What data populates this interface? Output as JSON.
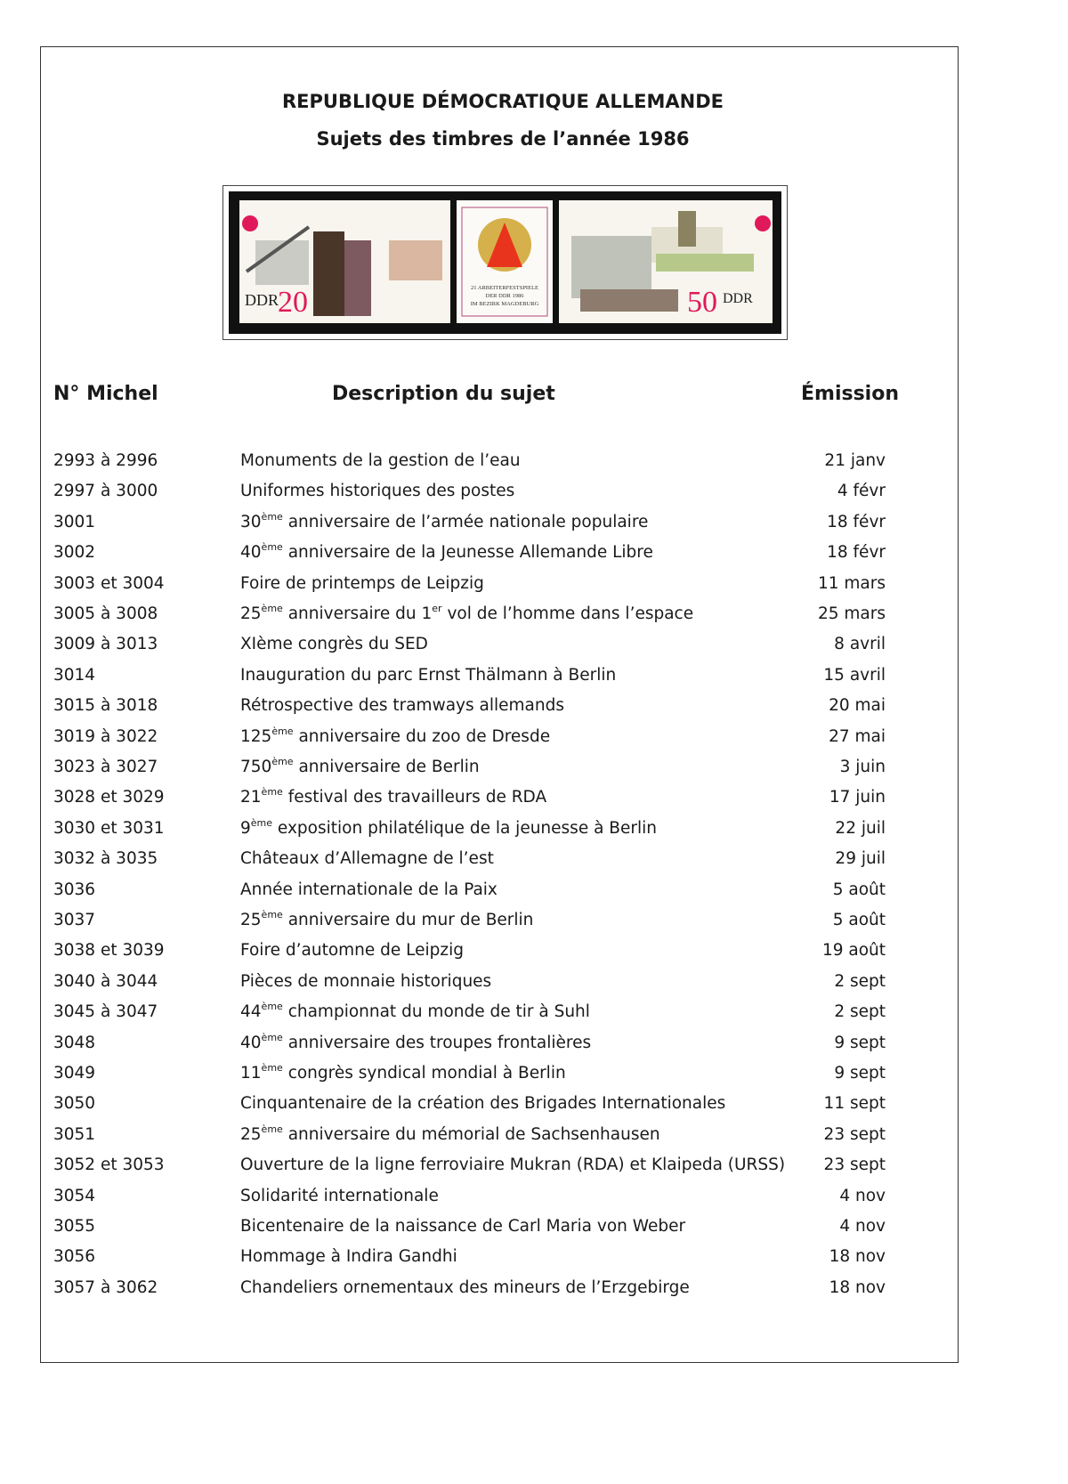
{
  "title": "REPUBLIQUE DÉMOCRATIQUE ALLEMANDE",
  "subtitle": "Sujets des timbres de l’année 1986",
  "stamp": {
    "left_header": "21 ARBEITERFESTSPIELE DER DDR 1986   IM BEZIRK MAGDEBURG",
    "left_country": "DDR",
    "left_value": "20",
    "center_text": [
      "21 ARBEITERFESTSPIELE",
      "DER DDR 1986",
      "IM BEZIRK MAGDEBURG"
    ],
    "right_header": "21 ARBEITERFESTSPIELE DER DDR 1986   IM BEZIRK MAGDEBURG",
    "right_country": "DDR",
    "right_value": "50",
    "accent_color": "#e0195a"
  },
  "headers": {
    "num": "N° Michel",
    "desc": "Description du sujet",
    "date": "Émission"
  },
  "rows": [
    {
      "num": "2993 à 2996",
      "desc": [
        {
          "t": "Monuments de la gestion de l’eau"
        }
      ],
      "date": "21 janv"
    },
    {
      "num": "2997 à 3000",
      "desc": [
        {
          "t": "Uniformes historiques des postes"
        }
      ],
      "date": "4 févr"
    },
    {
      "num": "3001",
      "desc": [
        {
          "t": "30"
        },
        {
          "t": "ème",
          "sup": true
        },
        {
          "t": " anniversaire de l’armée nationale populaire"
        }
      ],
      "date": "18 févr"
    },
    {
      "num": "3002",
      "desc": [
        {
          "t": "40"
        },
        {
          "t": "ème",
          "sup": true
        },
        {
          "t": " anniversaire de la Jeunesse Allemande Libre"
        }
      ],
      "date": "18 févr"
    },
    {
      "num": "3003 et 3004",
      "desc": [
        {
          "t": "Foire de printemps de Leipzig"
        }
      ],
      "date": "11 mars"
    },
    {
      "num": "3005 à 3008",
      "desc": [
        {
          "t": "25"
        },
        {
          "t": "ème",
          "sup": true
        },
        {
          "t": " anniversaire du 1"
        },
        {
          "t": "er",
          "sup": true
        },
        {
          "t": " vol de l’homme dans l’espace"
        }
      ],
      "date": "25 mars"
    },
    {
      "num": "3009 à 3013",
      "desc": [
        {
          "t": "XIème congrès du SED"
        }
      ],
      "date": "8 avril"
    },
    {
      "num": "3014",
      "desc": [
        {
          "t": "Inauguration du parc  Ernst Thälmann à Berlin"
        }
      ],
      "date": "15 avril"
    },
    {
      "num": "3015 à 3018",
      "desc": [
        {
          "t": "Rétrospective des tramways allemands"
        }
      ],
      "date": "20 mai"
    },
    {
      "num": "3019 à 3022",
      "desc": [
        {
          "t": "125"
        },
        {
          "t": "ème",
          "sup": true
        },
        {
          "t": " anniversaire du zoo de Dresde"
        }
      ],
      "date": "27 mai"
    },
    {
      "num": "3023 à 3027",
      "desc": [
        {
          "t": "750"
        },
        {
          "t": "ème",
          "sup": true
        },
        {
          "t": " anniversaire de Berlin"
        }
      ],
      "date": "3 juin"
    },
    {
      "num": "3028 et 3029",
      "desc": [
        {
          "t": "21"
        },
        {
          "t": "ème",
          "sup": true
        },
        {
          "t": " festival des travailleurs de RDA"
        }
      ],
      "date": "17 juin"
    },
    {
      "num": "3030 et 3031",
      "desc": [
        {
          "t": "9"
        },
        {
          "t": "ème",
          "sup": true
        },
        {
          "t": " exposition philatélique de la jeunesse à Berlin"
        }
      ],
      "date": "22 juil"
    },
    {
      "num": "3032 à 3035",
      "desc": [
        {
          "t": "Châteaux d’Allemagne de l’est"
        }
      ],
      "date": "29 juil"
    },
    {
      "num": "3036",
      "desc": [
        {
          "t": "Année internationale de la Paix"
        }
      ],
      "date": "5 août"
    },
    {
      "num": "3037",
      "desc": [
        {
          "t": "25"
        },
        {
          "t": "ème",
          "sup": true
        },
        {
          "t": " anniversaire du mur de Berlin"
        }
      ],
      "date": "5 août"
    },
    {
      "num": "3038 et 3039",
      "desc": [
        {
          "t": "Foire d’automne de Leipzig"
        }
      ],
      "date": "19 août"
    },
    {
      "num": "3040 à 3044",
      "desc": [
        {
          "t": "Pièces de monnaie historiques"
        }
      ],
      "date": "2 sept"
    },
    {
      "num": "3045 à 3047",
      "desc": [
        {
          "t": "44"
        },
        {
          "t": "ème",
          "sup": true
        },
        {
          "t": " championnat du monde de tir à Suhl"
        }
      ],
      "date": "2 sept"
    },
    {
      "num": "3048",
      "desc": [
        {
          "t": "40"
        },
        {
          "t": "ème",
          "sup": true
        },
        {
          "t": " anniversaire des troupes frontalières"
        }
      ],
      "date": "9 sept"
    },
    {
      "num": "3049",
      "desc": [
        {
          "t": "11"
        },
        {
          "t": "ème",
          "sup": true
        },
        {
          "t": " congrès syndical mondial à Berlin"
        }
      ],
      "date": "9 sept"
    },
    {
      "num": "3050",
      "desc": [
        {
          "t": "Cinquantenaire de la création des Brigades Internationales"
        }
      ],
      "date": "11 sept"
    },
    {
      "num": "3051",
      "desc": [
        {
          "t": "25"
        },
        {
          "t": "ème",
          "sup": true
        },
        {
          "t": " anniversaire du mémorial de Sachsenhausen"
        }
      ],
      "date": "23 sept"
    },
    {
      "num": "3052 et 3053",
      "desc": [
        {
          "t": "Ouverture de la ligne ferroviaire Mukran (RDA) et Klaipeda (URSS)"
        }
      ],
      "date": "23 sept"
    },
    {
      "num": "3054",
      "desc": [
        {
          "t": "Solidarité internationale"
        }
      ],
      "date": "4 nov"
    },
    {
      "num": "3055",
      "desc": [
        {
          "t": "Bicentenaire de la naissance de Carl Maria von Weber"
        }
      ],
      "date": "4 nov"
    },
    {
      "num": "3056",
      "desc": [
        {
          "t": "Hommage à Indira Gandhi"
        }
      ],
      "date": "18 nov"
    },
    {
      "num": "3057 à 3062",
      "desc": [
        {
          "t": "Chandeliers ornementaux des mineurs de l’Erzgebirge"
        }
      ],
      "date": "18 nov"
    }
  ]
}
